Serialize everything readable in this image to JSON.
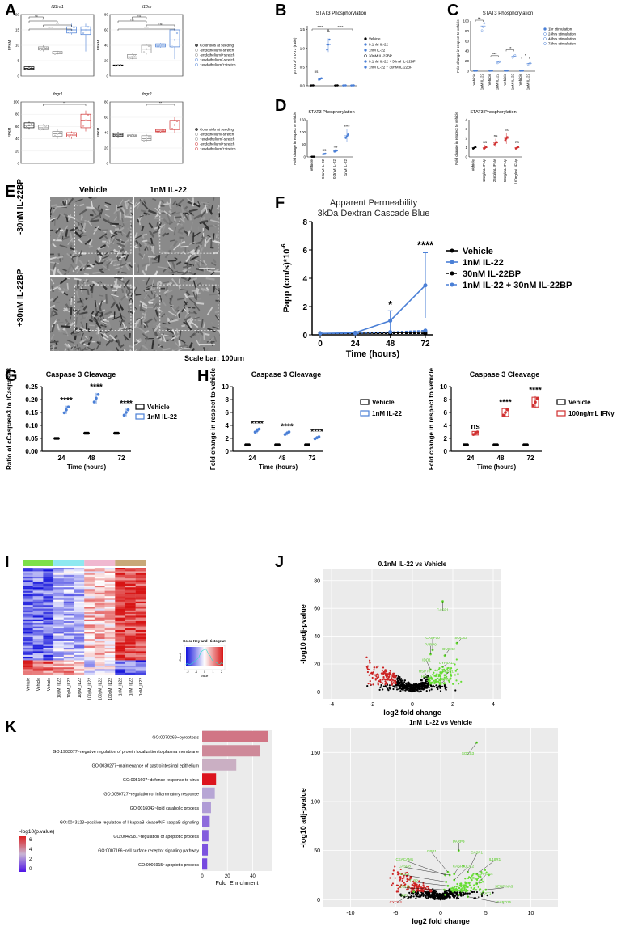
{
  "panels": {
    "A": {
      "label": "A",
      "charts": [
        {
          "type": "box",
          "title": "Il22ra1",
          "ylabel": "FPKM",
          "ylim": [
            0,
            20
          ],
          "ticks": [
            0,
            5,
            10,
            15,
            20
          ],
          "groups": [
            "Colonoids at seeding",
            "-endothelium/-stretch",
            "-endothelium/+stretch",
            "+endothelium/-stretch",
            "+endothelium/+stretch"
          ],
          "medians": [
            2.5,
            9,
            7.5,
            15,
            15
          ],
          "q1": [
            2.2,
            8.5,
            7.2,
            14,
            13.5
          ],
          "q3": [
            3,
            9.5,
            8,
            16,
            16
          ],
          "min": [
            2,
            8,
            7,
            13.5,
            8
          ],
          "max": [
            3.2,
            10,
            8.2,
            17,
            17
          ],
          "sig": [
            {
              "a": 0,
              "b": 1,
              "t": "ns",
              "level": 0
            },
            {
              "a": 0,
              "b": 2,
              "t": "**",
              "level": 1
            },
            {
              "a": 0,
              "b": 3,
              "t": "****",
              "level": 3
            },
            {
              "a": 1,
              "b": 3,
              "t": "***",
              "level": 2
            }
          ]
        },
        {
          "type": "box",
          "title": "Il10rb",
          "ylabel": "FPKM",
          "ylim": [
            0,
            80
          ],
          "ticks": [
            0,
            20,
            40,
            60,
            80
          ],
          "groups": [
            "Colonoids at seeding",
            "-endothelium/-stretch",
            "-endothelium/+stretch",
            "+endothelium/-stretch",
            "+endothelium/+stretch"
          ],
          "medians": [
            14,
            25,
            35,
            40,
            47
          ],
          "q1": [
            13.5,
            23,
            30,
            38,
            38
          ],
          "q3": [
            14.5,
            28,
            40,
            42,
            60
          ],
          "min": [
            13,
            22,
            28,
            37,
            22
          ],
          "max": [
            15,
            29,
            41,
            43,
            62
          ],
          "sig": [
            {
              "a": 0,
              "b": 2,
              "t": "ns",
              "level": 1
            },
            {
              "a": 0,
              "b": 4,
              "t": "****",
              "level": 3
            },
            {
              "a": 1,
              "b": 2,
              "t": "ns",
              "level": 0
            },
            {
              "a": 2,
              "b": 4,
              "t": "ns",
              "level": 2
            }
          ]
        },
        {
          "type": "box",
          "title": "Ifngr1",
          "ylabel": "FPKM",
          "ylim": [
            0,
            100
          ],
          "ticks": [
            0,
            20,
            40,
            60,
            80,
            100
          ],
          "groups": [
            "Colonoids at seeding",
            "-endothelium/-stretch",
            "+endothelium/-stretch",
            "-endothelium/+stretch",
            "+endothelium/+stretch"
          ],
          "medians": [
            62,
            58,
            48,
            46,
            70
          ],
          "q1": [
            58,
            55,
            44,
            43,
            58
          ],
          "q3": [
            66,
            62,
            52,
            50,
            80
          ],
          "min": [
            55,
            54,
            40,
            40,
            52
          ],
          "max": [
            68,
            64,
            56,
            52,
            86
          ],
          "sig": [
            {
              "a": 1,
              "b": 4,
              "t": "**",
              "level": 0
            }
          ]
        },
        {
          "type": "box",
          "title": "Ifngr2",
          "ylabel": "FPKM",
          "ylim": [
            0,
            80
          ],
          "ticks": [
            0,
            20,
            40,
            60,
            80
          ],
          "groups": [
            "Colonoids at seeding",
            "-endothelium/-stretch",
            "+endothelium/-stretch",
            "-endothelium/+stretch",
            "+endothelium/+stretch"
          ],
          "medians": [
            37,
            36,
            32,
            42,
            50
          ],
          "q1": [
            35,
            35,
            30,
            41,
            44
          ],
          "q3": [
            39,
            37,
            36,
            44,
            56
          ],
          "min": [
            33,
            34,
            28,
            40,
            40
          ],
          "max": [
            41,
            38,
            38,
            45,
            60
          ],
          "sig": [
            {
              "a": 2,
              "b": 4,
              "t": "**",
              "level": 0
            }
          ]
        }
      ],
      "legend1": [
        "Colonoids at seeding",
        "-endothelium/-stretch",
        "-endothelium/+stretch",
        "+endothelium/-stretch",
        "+endothelium/+stretch"
      ],
      "legend2": [
        "Colonoids at seeding",
        "-endothelium/-stretch",
        "+endothelium/-stretch",
        "-endothelium/+stretch",
        "+endothelium/+stretch"
      ]
    },
    "B": {
      "label": "B",
      "title": "STAT3 Phosphorylation",
      "ylabel": "pSTAT3/ STAT3 (ratio)",
      "ticks": [
        0,
        0.5,
        1.0,
        1.5
      ],
      "legend": [
        "Vehicle",
        "0.1nM IL-22",
        "1nM IL-22",
        "30nM IL-22BP",
        "0.1nM IL-22 + 30nM IL-22BP",
        "1nM IL-22 + 30nM IL-22BP"
      ],
      "values": [
        0.01,
        0.18,
        1.1,
        0.01,
        0.01,
        0.01
      ],
      "sig": [
        {
          "t": "ns"
        },
        {
          "t": "****"
        },
        {
          "t": "****"
        },
        {
          "t": "**"
        }
      ]
    },
    "C": {
      "label": "C",
      "title": "STAT3 Phosphorylation",
      "ylabel": "Fold change in respect to vehicle",
      "categories": [
        "Vehicle",
        "1nM IL-22",
        "Vehicle",
        "1nM IL-22",
        "Vehicle",
        "1nM IL-22",
        "Vehicle",
        "1nM IL-22"
      ],
      "values": [
        1,
        90,
        1,
        18,
        1,
        30,
        1,
        15
      ],
      "ticks": [
        "0",
        "20",
        "40",
        "60",
        "80",
        "100"
      ],
      "sig": [
        "**",
        "***",
        "**",
        "*"
      ],
      "legend": [
        "1hr stimulation",
        "24hrs stimulation",
        "48hrs stimulation",
        "72hrs stimulation"
      ]
    },
    "D": {
      "label": "D",
      "title": "STAT3 Phosphorylation",
      "ylabel": "Fold change in respect to vehicle",
      "left": {
        "categories": [
          "Vehicle",
          "0.1nM IL-22",
          "0.3nM IL-22",
          "1nM IL-22"
        ],
        "values": [
          1,
          12,
          24,
          85
        ],
        "sig": [
          "ns",
          "ns",
          "****"
        ],
        "ticks": [
          "0",
          "50",
          "100",
          "150"
        ]
      },
      "right": {
        "categories": [
          "Vehicle",
          "10ng/mL IFNγ",
          "25ng/mL IFNγ",
          "50ng/mL IFNγ",
          "100ng/mL IFNγ"
        ],
        "values": [
          1,
          1,
          1.5,
          2,
          1
        ],
        "sig": [
          "ns",
          "ns",
          "ns",
          "ns"
        ],
        "ticks": [
          "0",
          "1",
          "2",
          "3",
          "4"
        ]
      }
    },
    "E": {
      "label": "E",
      "col1": "Vehicle",
      "col2": "1nM IL-22",
      "row1": "-30nM IL-22BP",
      "row2": "+30nM IL-22BP",
      "scale": "Scale bar: 100um"
    },
    "F": {
      "label": "F",
      "title": "Apparent Permeability",
      "subtitle": "3kDa Dextran Cascade Blue",
      "ylabel": "Papp (cm/s)*10",
      "ylabel_exp": "-6",
      "xlabel": "Time (hours)",
      "x": [
        0,
        24,
        48,
        72
      ],
      "ylim": [
        0,
        8
      ],
      "ticks": [
        0,
        2,
        4,
        6,
        8
      ],
      "series": [
        {
          "name": "Vehicle",
          "values": [
            0.1,
            0.1,
            0.15,
            0.2
          ],
          "color": "#000000",
          "dash": false
        },
        {
          "name": "1nM IL-22",
          "values": [
            0.1,
            0.15,
            1.0,
            3.5
          ],
          "color": "#4a7fd6",
          "dash": false
        },
        {
          "name": "30nM IL-22BP",
          "values": [
            0.1,
            0.1,
            0.1,
            0.1
          ],
          "color": "#000000",
          "dash": true
        },
        {
          "name": "1nM IL-22 + 30nM IL-22BP",
          "values": [
            0.1,
            0.1,
            0.2,
            0.3
          ],
          "color": "#4a7fd6",
          "dash": true
        }
      ],
      "sig": [
        {
          "x": 48,
          "t": "*"
        },
        {
          "x": 72,
          "t": "****"
        }
      ]
    },
    "G": {
      "label": "G",
      "title": "Caspase 3 Cleavage",
      "ylabel": "Ratio of cCaspase3 to tCaspase3",
      "xlabel": "Time (hours)",
      "categories": [
        "24",
        "48",
        "72"
      ],
      "ticks": [
        "0.00",
        "0.05",
        "0.10",
        "0.15",
        "0.20",
        "0.25"
      ],
      "vehicle": [
        0.05,
        0.07,
        0.07
      ],
      "treat": [
        0.16,
        0.205,
        0.15
      ],
      "sig": [
        "****",
        "****",
        "****"
      ],
      "legend": [
        "Vehicle",
        "1nM IL-22"
      ]
    },
    "H": {
      "label": "H",
      "title": "Caspase 3 Cleavage",
      "ylabel": "Fold change in respect to vehicle",
      "xlabel": "Time (hours)",
      "left": {
        "categories": [
          "24",
          "48",
          "72"
        ],
        "ticks": [
          "0",
          "2",
          "4",
          "6",
          "8",
          "10"
        ],
        "vehicle": [
          1,
          1,
          1
        ],
        "treat": [
          3.2,
          2.8,
          2.1
        ],
        "sig": [
          "****",
          "****",
          "****"
        ],
        "legend": [
          "Vehicle",
          "1nM IL-22"
        ]
      },
      "right": {
        "categories": [
          "24",
          "48",
          "72"
        ],
        "ticks": [
          "0",
          "2",
          "4",
          "6",
          "8",
          "10"
        ],
        "vehicle": [
          1,
          1,
          1
        ],
        "treat": [
          2.8,
          6.0,
          7.6
        ],
        "sig": [
          "ns",
          "****",
          "****"
        ],
        "legend": [
          "Vehicle",
          "100ng/mL IFNγ"
        ]
      }
    },
    "I": {
      "label": "I",
      "columns": [
        "Vehicle",
        "Vehicle",
        "Vehicle",
        "10pM_IL22",
        "10pM_IL22",
        "10pM_IL22",
        "100pM_IL22",
        "100pM_IL22",
        "100pM_IL22",
        "1nM_IL22",
        "1nM_IL22",
        "1nM_IL22"
      ],
      "group_colors": [
        "#7de04a",
        "#8fe8f0",
        "#f0b8d0",
        "#c8a878"
      ],
      "colorkey_title": "Color Key and Histogram",
      "colorkey_xlabel": "Value",
      "colorkey_ticks": [
        "-2",
        "-1",
        "0",
        "1",
        "2"
      ],
      "colorkey_ylabel": "Count"
    },
    "J": {
      "label": "J",
      "top": {
        "title": "0.1nM IL-22 vs Vehicle",
        "xlabel": "log2 fold change",
        "ylabel": "-log10 adj-pvalue",
        "xticks": [
          "-4",
          "-2",
          "0",
          "2",
          "4"
        ],
        "yticks": [
          "0",
          "20",
          "40",
          "60",
          "80"
        ],
        "genes": [
          "CASP1",
          "SOCS3",
          "CASP10",
          "PARP9",
          "DUOX2",
          "CYP4A11",
          "IDO1",
          "HSP70",
          "GBP1",
          "HLA-A",
          "STAT1"
        ]
      },
      "bottom": {
        "title": "1nM IL-22 vs Vehicle",
        "xlabel": "log2 fold change",
        "ylabel": "-log10 adj-pvalue",
        "xticks": [
          "-10",
          "-5",
          "0",
          "5",
          "10"
        ],
        "yticks": [
          "0",
          "50",
          "100",
          "150"
        ],
        "genes": [
          "SOCS3",
          "PARP9",
          "CEACAM1",
          "GBP1",
          "CASP8",
          "CASP4",
          "CASP1",
          "IL18R1",
          "BCL3",
          "DUOX2",
          "TLR2",
          "CARD14",
          "CDH2",
          "SERPINA3",
          "IRF1",
          "STAT1",
          "CXCR4",
          "CARD16"
        ]
      }
    },
    "K": {
      "label": "K",
      "xlabel": "Fold_Enrichment",
      "xticks": [
        "0",
        "20",
        "40"
      ],
      "terms": [
        {
          "term": "GO:0070269~pyroptosis",
          "value": 52,
          "p": 5.0
        },
        {
          "term": "GO:1903077~negative regulation of protein localization to plasma membrane",
          "value": 46,
          "p": 4.6
        },
        {
          "term": "GO:0030277~maintenance of gastrointestinal epithelium",
          "value": 27,
          "p": 3.8
        },
        {
          "term": "GO:0051607~defense response to virus",
          "value": 11,
          "p": 7.0
        },
        {
          "term": "GO:0050727~regulation of inflammatory response",
          "value": 10,
          "p": 3.0
        },
        {
          "term": "GO:0016042~lipid catabolic process",
          "value": 7,
          "p": 2.8
        },
        {
          "term": "GO:0043123~positive regulation of I-kappaB kinase/NF-kappaB signaling",
          "value": 6,
          "p": 1.8
        },
        {
          "term": "GO:0042981~regulation of apoptotic process",
          "value": 5,
          "p": 1.5
        },
        {
          "term": "GO:0007166~cell surface receptor signaling pathway",
          "value": 4.5,
          "p": 1.3
        },
        {
          "term": "GO:0006915~apoptotic process",
          "value": 4,
          "p": 1.1
        }
      ],
      "legend_title": "-log10(p.value)",
      "legend_ticks": [
        "6",
        "4",
        "2",
        "0"
      ]
    }
  }
}
